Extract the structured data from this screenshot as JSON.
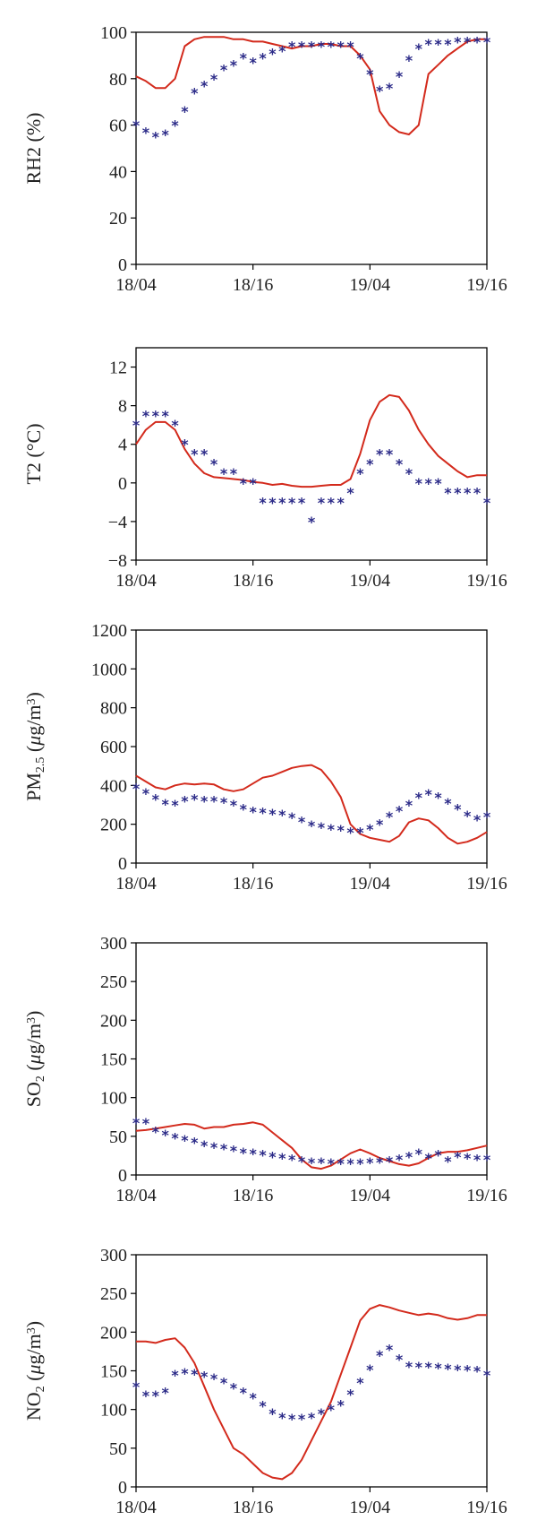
{
  "colors": {
    "model": "#d32a1c",
    "observed": "#2b2a88"
  },
  "chart_data": [
    {
      "type": "line",
      "ylabel": {
        "main": "RH2 (%)",
        "sub": "",
        "unit": ""
      },
      "ylim": [
        0,
        100
      ],
      "yticks": [
        "0",
        "20",
        "40",
        "60",
        "80",
        "100"
      ],
      "ytick_values": [
        0,
        20,
        40,
        60,
        80,
        100
      ],
      "xticks": [
        "18/04",
        "18/16",
        "19/04",
        "19/16"
      ],
      "xtick_values": [
        0,
        12,
        24,
        36
      ],
      "xlim": [
        0,
        36
      ],
      "series": [
        {
          "kind": "line",
          "x": [
            0,
            1,
            2,
            3,
            4,
            5,
            6,
            7,
            8,
            9,
            10,
            11,
            12,
            13,
            14,
            15,
            16,
            17,
            18,
            19,
            20,
            21,
            22,
            23,
            24,
            25,
            26,
            27,
            28,
            29,
            30,
            31,
            32,
            33,
            34,
            35,
            36
          ],
          "values": [
            81,
            79,
            76,
            76,
            80,
            94,
            97,
            98,
            98,
            98,
            97,
            97,
            96,
            96,
            95,
            94,
            93,
            94,
            94,
            95,
            95,
            94,
            94,
            90,
            84,
            66,
            60,
            57,
            56,
            60,
            82,
            86,
            90,
            93,
            96,
            97,
            97
          ]
        },
        {
          "kind": "scatter",
          "x": [
            0,
            1,
            2,
            3,
            4,
            5,
            6,
            7,
            8,
            9,
            10,
            11,
            12,
            13,
            14,
            15,
            16,
            17,
            18,
            19,
            20,
            21,
            22,
            23,
            24,
            25,
            26,
            27,
            28,
            29,
            30,
            31,
            32,
            33,
            34,
            35,
            36
          ],
          "values": [
            60,
            57,
            55,
            56,
            60,
            66,
            74,
            77,
            80,
            84,
            86,
            89,
            87,
            89,
            91,
            92,
            94,
            94,
            94,
            94,
            94,
            94,
            94,
            89,
            82,
            75,
            76,
            81,
            88,
            93,
            95,
            95,
            95,
            96,
            96,
            96,
            96
          ]
        }
      ]
    },
    {
      "type": "line",
      "ylabel": {
        "main": "T2 (°C)",
        "sub": "",
        "unit": ""
      },
      "ylim": [
        -8,
        14
      ],
      "yticks": [
        "−8",
        "−4",
        "0",
        "4",
        "8",
        "12"
      ],
      "ytick_values": [
        -8,
        -4,
        0,
        4,
        8,
        12
      ],
      "xticks": [
        "18/04",
        "18/16",
        "19/04",
        "19/16"
      ],
      "xtick_values": [
        0,
        12,
        24,
        36
      ],
      "xlim": [
        0,
        36
      ],
      "series": [
        {
          "kind": "line",
          "x": [
            0,
            1,
            2,
            3,
            4,
            5,
            6,
            7,
            8,
            9,
            10,
            11,
            12,
            13,
            14,
            15,
            16,
            17,
            18,
            19,
            20,
            21,
            22,
            23,
            24,
            25,
            26,
            27,
            28,
            29,
            30,
            31,
            32,
            33,
            34,
            35,
            36
          ],
          "values": [
            4,
            5.5,
            6.3,
            6.3,
            5.5,
            3.5,
            2,
            1,
            0.6,
            0.5,
            0.4,
            0.3,
            0.1,
            0,
            -0.2,
            -0.1,
            -0.3,
            -0.4,
            -0.4,
            -0.3,
            -0.2,
            -0.2,
            0.4,
            3,
            6.5,
            8.4,
            9.1,
            8.9,
            7.5,
            5.5,
            4,
            2.8,
            2,
            1.2,
            0.6,
            0.8,
            0.8
          ]
        },
        {
          "kind": "scatter",
          "x": [
            0,
            1,
            2,
            3,
            4,
            5,
            6,
            7,
            8,
            9,
            10,
            11,
            12,
            13,
            14,
            15,
            16,
            17,
            18,
            19,
            20,
            21,
            22,
            23,
            24,
            25,
            26,
            27,
            28,
            29,
            30,
            31,
            32,
            33,
            34,
            35,
            36
          ],
          "values": [
            6,
            7,
            7,
            7,
            6,
            4,
            3,
            3,
            2,
            1,
            1,
            0,
            0,
            -2,
            -2,
            -2,
            -2,
            -2,
            -4,
            -2,
            -2,
            -2,
            -1,
            1,
            2,
            3,
            3,
            2,
            1,
            0,
            0,
            0,
            -1,
            -1,
            -1,
            -1,
            -2
          ]
        }
      ]
    },
    {
      "type": "line",
      "ylabel": {
        "main": "PM",
        "sub": "2.5",
        "unit": "g/m"
      },
      "ylim": [
        0,
        1200
      ],
      "yticks": [
        "0",
        "200",
        "400",
        "600",
        "800",
        "1000",
        "1200"
      ],
      "ytick_values": [
        0,
        200,
        400,
        600,
        800,
        1000,
        1200
      ],
      "xticks": [
        "18/04",
        "18/16",
        "19/04",
        "19/16"
      ],
      "xtick_values": [
        0,
        12,
        24,
        36
      ],
      "xlim": [
        0,
        36
      ],
      "series": [
        {
          "kind": "line",
          "x": [
            0,
            1,
            2,
            3,
            4,
            5,
            6,
            7,
            8,
            9,
            10,
            11,
            12,
            13,
            14,
            15,
            16,
            17,
            18,
            19,
            20,
            21,
            22,
            23,
            24,
            25,
            26,
            27,
            28,
            29,
            30,
            31,
            32,
            33,
            34,
            35,
            36
          ],
          "values": [
            450,
            420,
            390,
            380,
            400,
            410,
            405,
            410,
            405,
            380,
            370,
            380,
            410,
            440,
            450,
            470,
            490,
            500,
            505,
            480,
            420,
            340,
            200,
            150,
            130,
            120,
            110,
            140,
            210,
            230,
            220,
            180,
            130,
            100,
            110,
            130,
            160
          ]
        },
        {
          "kind": "scatter",
          "x": [
            0,
            1,
            2,
            3,
            4,
            5,
            6,
            7,
            8,
            9,
            10,
            11,
            12,
            13,
            14,
            15,
            16,
            17,
            18,
            19,
            20,
            21,
            22,
            23,
            24,
            25,
            26,
            27,
            28,
            29,
            30,
            31,
            32,
            33,
            34,
            35,
            36
          ],
          "values": [
            385,
            360,
            330,
            305,
            300,
            320,
            330,
            320,
            320,
            315,
            300,
            280,
            265,
            260,
            255,
            250,
            235,
            215,
            195,
            185,
            175,
            170,
            160,
            160,
            175,
            200,
            240,
            270,
            300,
            340,
            355,
            340,
            310,
            280,
            245,
            225,
            240
          ]
        }
      ]
    },
    {
      "type": "line",
      "ylabel": {
        "main": "SO",
        "sub": "2",
        "unit": "g/m"
      },
      "ylim": [
        0,
        300
      ],
      "yticks": [
        "0",
        "50",
        "100",
        "150",
        "200",
        "250",
        "300"
      ],
      "ytick_values": [
        0,
        50,
        100,
        150,
        200,
        250,
        300
      ],
      "xticks": [
        "18/04",
        "18/16",
        "19/04",
        "19/16"
      ],
      "xtick_values": [
        0,
        12,
        24,
        36
      ],
      "xlim": [
        0,
        36
      ],
      "series": [
        {
          "kind": "line",
          "x": [
            0,
            1,
            2,
            3,
            4,
            5,
            6,
            7,
            8,
            9,
            10,
            11,
            12,
            13,
            14,
            15,
            16,
            17,
            18,
            19,
            20,
            21,
            22,
            23,
            24,
            25,
            26,
            27,
            28,
            29,
            30,
            31,
            32,
            33,
            34,
            35,
            36
          ],
          "values": [
            57,
            58,
            60,
            62,
            64,
            66,
            65,
            60,
            62,
            62,
            65,
            66,
            68,
            65,
            55,
            45,
            35,
            20,
            10,
            8,
            12,
            20,
            28,
            33,
            28,
            22,
            18,
            14,
            12,
            15,
            22,
            28,
            30,
            30,
            32,
            35,
            38
          ]
        },
        {
          "kind": "scatter",
          "x": [
            0,
            1,
            2,
            3,
            4,
            5,
            6,
            7,
            8,
            9,
            10,
            11,
            12,
            13,
            14,
            15,
            16,
            17,
            18,
            19,
            20,
            21,
            22,
            23,
            24,
            25,
            26,
            27,
            28,
            29,
            30,
            31,
            32,
            33,
            34,
            35,
            36
          ],
          "values": [
            68,
            67,
            56,
            52,
            48,
            45,
            42,
            38,
            36,
            34,
            32,
            29,
            28,
            26,
            24,
            22,
            20,
            18,
            16,
            16,
            15,
            15,
            15,
            15,
            16,
            17,
            18,
            20,
            24,
            28,
            22,
            26,
            18,
            24,
            22,
            20,
            20
          ]
        }
      ]
    },
    {
      "type": "line",
      "ylabel": {
        "main": "NO",
        "sub": "2",
        "unit": "g/m"
      },
      "ylim": [
        0,
        300
      ],
      "yticks": [
        "0",
        "50",
        "100",
        "150",
        "200",
        "250",
        "300"
      ],
      "ytick_values": [
        0,
        50,
        100,
        150,
        200,
        250,
        300
      ],
      "xticks": [
        "18/04",
        "18/16",
        "19/04",
        "19/16"
      ],
      "xtick_values": [
        0,
        12,
        24,
        36
      ],
      "xlim": [
        0,
        36
      ],
      "series": [
        {
          "kind": "line",
          "x": [
            0,
            1,
            2,
            3,
            4,
            5,
            6,
            7,
            8,
            9,
            10,
            11,
            12,
            13,
            14,
            15,
            16,
            17,
            18,
            19,
            20,
            21,
            22,
            23,
            24,
            25,
            26,
            27,
            28,
            29,
            30,
            31,
            32,
            33,
            34,
            35,
            36
          ],
          "values": [
            188,
            188,
            186,
            190,
            192,
            180,
            160,
            130,
            100,
            75,
            50,
            42,
            30,
            18,
            12,
            10,
            18,
            35,
            60,
            85,
            110,
            145,
            180,
            215,
            230,
            235,
            232,
            228,
            225,
            222,
            224,
            222,
            218,
            216,
            218,
            222,
            222
          ]
        },
        {
          "kind": "scatter",
          "x": [
            0,
            1,
            2,
            3,
            4,
            5,
            6,
            7,
            8,
            9,
            10,
            11,
            12,
            13,
            14,
            15,
            16,
            17,
            18,
            19,
            20,
            21,
            22,
            23,
            24,
            25,
            26,
            27,
            28,
            29,
            30,
            31,
            32,
            33,
            34,
            35,
            36
          ],
          "values": [
            130,
            118,
            118,
            122,
            145,
            147,
            146,
            143,
            140,
            135,
            128,
            122,
            115,
            105,
            95,
            90,
            88,
            88,
            90,
            95,
            100,
            106,
            120,
            135,
            152,
            170,
            178,
            165,
            156,
            155,
            155,
            154,
            153,
            152,
            151,
            150,
            145
          ]
        }
      ]
    }
  ]
}
